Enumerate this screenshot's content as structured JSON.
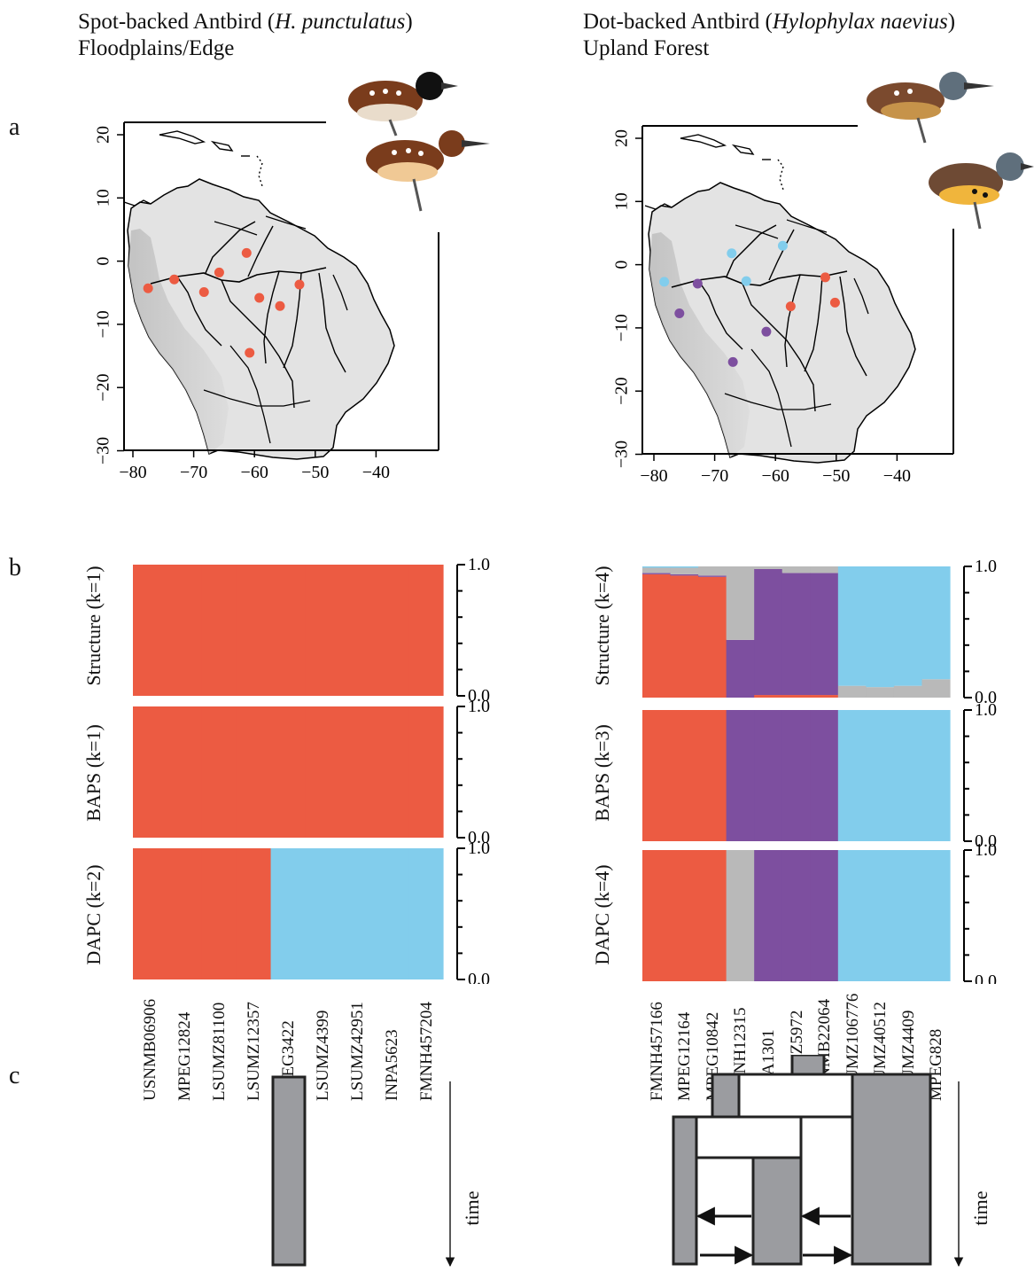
{
  "colors": {
    "red": "#ec5b42",
    "blue": "#82cdec",
    "purple": "#7d4f9f",
    "gray": "#b9b9b9",
    "dark": "#9b9ca0",
    "land": "#e4e4e4",
    "andes": "#a8a8a8"
  },
  "panels": {
    "a": "a",
    "b": "b",
    "c": "c"
  },
  "left": {
    "title_common": "Spot-backed Antbird (",
    "title_sci": "H. punctulatus",
    "title_close": ")",
    "habitat": "Floodplains/Edge",
    "bird_icon": "spot-backed-antbird-illustration",
    "map_x_ticks": [
      "−80",
      "−70",
      "−60",
      "−50",
      "−40"
    ],
    "map_y_ticks": [
      "20",
      "10",
      "0",
      "−10",
      "−20",
      "−30"
    ],
    "map_points": [
      {
        "lon": -77.5,
        "lat": -4.3,
        "color": "red"
      },
      {
        "lon": -73.2,
        "lat": -2.9,
        "color": "red"
      },
      {
        "lon": -68.3,
        "lat": -4.9,
        "color": "red"
      },
      {
        "lon": -65.8,
        "lat": -1.8,
        "color": "red"
      },
      {
        "lon": -61.3,
        "lat": 1.3,
        "color": "red"
      },
      {
        "lon": -59.2,
        "lat": -5.8,
        "color": "red"
      },
      {
        "lon": -55.8,
        "lat": -7.1,
        "color": "red"
      },
      {
        "lon": -52.6,
        "lat": -3.7,
        "color": "red"
      },
      {
        "lon": -60.8,
        "lat": -14.5,
        "color": "red"
      }
    ],
    "structure_label": "Structure (k=1)",
    "baps_label": "BAPS (k=1)",
    "dapc_label": "DAPC (k=2)",
    "samples": [
      "USNMB06906",
      "MPEG12824",
      "LSUMZ81100",
      "LSUMZ12357",
      "MPEG3422",
      "LSUMZ4399",
      "LSUMZ42951",
      "INPA5623",
      "FMNH457204"
    ],
    "time_label": "time"
  },
  "right": {
    "title_common": "Dot-backed Antbird (",
    "title_sci": "Hylophylax naevius",
    "title_close": ")",
    "habitat": "Upland Forest",
    "bird_icon": "dot-backed-antbird-illustration",
    "map_x_ticks": [
      "−80",
      "−70",
      "−60",
      "−50",
      "−40"
    ],
    "map_y_ticks": [
      "20",
      "10",
      "0",
      "−10",
      "−20",
      "−30"
    ],
    "map_points": [
      {
        "lon": -78.3,
        "lat": -2.7,
        "color": "blue"
      },
      {
        "lon": -67.2,
        "lat": 1.8,
        "color": "blue"
      },
      {
        "lon": -64.8,
        "lat": -2.6,
        "color": "blue"
      },
      {
        "lon": -58.8,
        "lat": 3.0,
        "color": "blue"
      },
      {
        "lon": -72.8,
        "lat": -3.0,
        "color": "purple"
      },
      {
        "lon": -75.8,
        "lat": -7.7,
        "color": "purple"
      },
      {
        "lon": -61.5,
        "lat": -10.6,
        "color": "purple"
      },
      {
        "lon": -67.0,
        "lat": -15.4,
        "color": "purple"
      },
      {
        "lon": -51.8,
        "lat": -2.0,
        "color": "red"
      },
      {
        "lon": -57.5,
        "lat": -6.6,
        "color": "red"
      },
      {
        "lon": -50.2,
        "lat": -6.0,
        "color": "red"
      }
    ],
    "structure_label": "Structure (k=4)",
    "baps_label": "BAPS (k=3)",
    "dapc_label": "DAPC (k=4)",
    "samples": [
      "FMNH457166",
      "MPEG12164",
      "MPEG10842",
      "AMNH12315",
      "INPA1301",
      "LSUMZ5972",
      "USNMB22064",
      "LSUMZ106776",
      "LSUMZ40512",
      "LSUMZ4409",
      "MPEG828"
    ],
    "time_label": "time"
  },
  "axis": {
    "top": "1.0",
    "bottom": "0.0"
  },
  "chart_data": [
    {
      "type": "bar",
      "title": "Structure (k=1)",
      "stacked": true,
      "categories": [
        "USNMB06906",
        "MPEG12824",
        "LSUMZ81100",
        "LSUMZ12357",
        "MPEG3422",
        "LSUMZ4399",
        "LSUMZ42951",
        "INPA5623",
        "FMNH457204"
      ],
      "series": [
        {
          "color": "red",
          "values": [
            1,
            1,
            1,
            1,
            1,
            1,
            1,
            1,
            1
          ]
        }
      ],
      "ylim": [
        0,
        1
      ]
    },
    {
      "type": "bar",
      "title": "BAPS (k=1)",
      "stacked": true,
      "categories": [
        "USNMB06906",
        "MPEG12824",
        "LSUMZ81100",
        "LSUMZ12357",
        "MPEG3422",
        "LSUMZ4399",
        "LSUMZ42951",
        "INPA5623",
        "FMNH457204"
      ],
      "series": [
        {
          "color": "red",
          "values": [
            1,
            1,
            1,
            1,
            1,
            1,
            1,
            1,
            1
          ]
        }
      ],
      "ylim": [
        0,
        1
      ]
    },
    {
      "type": "bar",
      "title": "DAPC (k=2)",
      "stacked": true,
      "categories": [
        "USNMB06906",
        "MPEG12824",
        "LSUMZ81100",
        "LSUMZ12357",
        "MPEG3422",
        "LSUMZ4399",
        "LSUMZ42951",
        "INPA5623",
        "FMNH457204"
      ],
      "series": [
        {
          "color": "red",
          "values": [
            1,
            1,
            1,
            1,
            0,
            0,
            0,
            0,
            0
          ]
        },
        {
          "color": "blue",
          "values": [
            0,
            0,
            0,
            0,
            1,
            1,
            1,
            1,
            1
          ]
        }
      ],
      "ylim": [
        0,
        1
      ]
    },
    {
      "type": "bar",
      "title": "Structure (k=4)",
      "stacked": true,
      "categories": [
        "FMNH457166",
        "MPEG12164",
        "MPEG10842",
        "AMNH12315",
        "INPA1301",
        "LSUMZ5972",
        "USNMB22064",
        "LSUMZ106776",
        "LSUMZ40512",
        "LSUMZ4409",
        "MPEG828"
      ],
      "series": [
        {
          "color": "red",
          "values": [
            0.94,
            0.93,
            0.92,
            0.0,
            0.02,
            0.02,
            0.02,
            0,
            0,
            0,
            0
          ]
        },
        {
          "color": "purple",
          "values": [
            0.01,
            0.01,
            0.01,
            0.44,
            0.96,
            0.93,
            0.93,
            0,
            0,
            0,
            0
          ]
        },
        {
          "color": "gray",
          "values": [
            0.04,
            0.05,
            0.07,
            0.56,
            0.02,
            0.05,
            0.05,
            0.09,
            0.08,
            0.09,
            0.14
          ]
        },
        {
          "color": "blue",
          "values": [
            0.01,
            0.01,
            0,
            0,
            0,
            0,
            0,
            0.91,
            0.92,
            0.91,
            0.86
          ]
        }
      ],
      "ylim": [
        0,
        1
      ]
    },
    {
      "type": "bar",
      "title": "BAPS (k=3)",
      "stacked": true,
      "categories": [
        "FMNH457166",
        "MPEG12164",
        "MPEG10842",
        "AMNH12315",
        "INPA1301",
        "LSUMZ5972",
        "USNMB22064",
        "LSUMZ106776",
        "LSUMZ40512",
        "LSUMZ4409",
        "MPEG828"
      ],
      "series": [
        {
          "color": "red",
          "values": [
            1,
            1,
            1,
            0,
            0,
            0,
            0,
            0,
            0,
            0,
            0
          ]
        },
        {
          "color": "purple",
          "values": [
            0,
            0,
            0,
            1,
            1,
            1,
            1,
            0,
            0,
            0,
            0
          ]
        },
        {
          "color": "blue",
          "values": [
            0,
            0,
            0,
            0,
            0,
            0,
            0,
            1,
            1,
            1,
            1
          ]
        }
      ],
      "ylim": [
        0,
        1
      ]
    },
    {
      "type": "bar",
      "title": "DAPC (k=4)",
      "stacked": true,
      "categories": [
        "FMNH457166",
        "MPEG12164",
        "MPEG10842",
        "AMNH12315",
        "INPA1301",
        "LSUMZ5972",
        "USNMB22064",
        "LSUMZ106776",
        "LSUMZ40512",
        "LSUMZ4409",
        "MPEG828"
      ],
      "series": [
        {
          "color": "red",
          "values": [
            1,
            1,
            1,
            0,
            0,
            0,
            0,
            0,
            0,
            0,
            0
          ]
        },
        {
          "color": "gray",
          "values": [
            0,
            0,
            0,
            1,
            0,
            0,
            0,
            0,
            0,
            0,
            0
          ]
        },
        {
          "color": "purple",
          "values": [
            0,
            0,
            0,
            0,
            1,
            1,
            1,
            0,
            0,
            0,
            0
          ]
        },
        {
          "color": "blue",
          "values": [
            0,
            0,
            0,
            0,
            0,
            0,
            0,
            1,
            1,
            1,
            1
          ]
        }
      ],
      "ylim": [
        0,
        1
      ]
    }
  ]
}
